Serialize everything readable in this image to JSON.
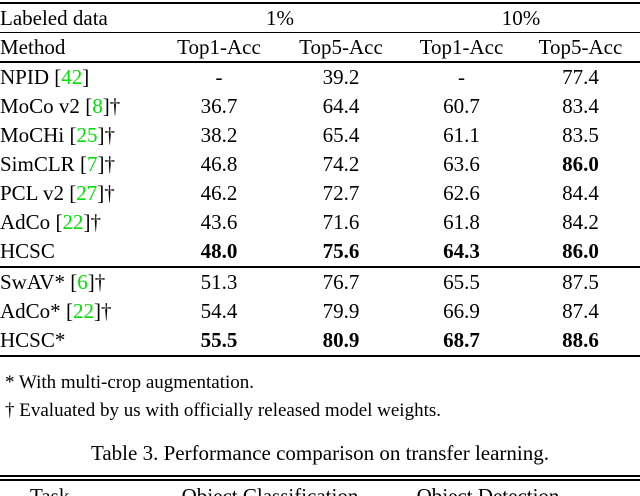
{
  "colors": {
    "citation_green": "#00e000"
  },
  "table3": {
    "header": {
      "labeled_data": "Labeled data",
      "pct1": "1%",
      "pct10": "10%",
      "method": "Method",
      "subcols": [
        "Top1-Acc",
        "Top5-Acc",
        "Top1-Acc",
        "Top5-Acc"
      ]
    },
    "groups": [
      {
        "rows": [
          {
            "name": "NPID",
            "cite": "42",
            "dagger": false,
            "values": [
              "-",
              "39.2",
              "-",
              "77.4"
            ],
            "bold": [
              false,
              false,
              false,
              false
            ]
          },
          {
            "name": "MoCo v2",
            "cite": "8",
            "dagger": true,
            "values": [
              "36.7",
              "64.4",
              "60.7",
              "83.4"
            ],
            "bold": [
              false,
              false,
              false,
              false
            ]
          },
          {
            "name": "MoCHi",
            "cite": "25",
            "dagger": true,
            "values": [
              "38.2",
              "65.4",
              "61.1",
              "83.5"
            ],
            "bold": [
              false,
              false,
              false,
              false
            ]
          },
          {
            "name": "SimCLR",
            "cite": "7",
            "dagger": true,
            "values": [
              "46.8",
              "74.2",
              "63.6",
              "86.0"
            ],
            "bold": [
              false,
              false,
              false,
              true
            ]
          },
          {
            "name": "PCL v2",
            "cite": "27",
            "dagger": true,
            "values": [
              "46.2",
              "72.7",
              "62.6",
              "84.4"
            ],
            "bold": [
              false,
              false,
              false,
              false
            ]
          },
          {
            "name": "AdCo",
            "cite": "22",
            "dagger": true,
            "values": [
              "43.6",
              "71.6",
              "61.8",
              "84.2"
            ],
            "bold": [
              false,
              false,
              false,
              false
            ]
          },
          {
            "name": "HCSC",
            "cite": null,
            "dagger": false,
            "values": [
              "48.0",
              "75.6",
              "64.3",
              "86.0"
            ],
            "bold": [
              true,
              true,
              true,
              true
            ]
          }
        ]
      },
      {
        "rows": [
          {
            "name": "SwAV*",
            "cite": "6",
            "dagger": true,
            "values": [
              "51.3",
              "76.7",
              "65.5",
              "87.5"
            ],
            "bold": [
              false,
              false,
              false,
              false
            ]
          },
          {
            "name": "AdCo*",
            "cite": "22",
            "dagger": true,
            "values": [
              "54.4",
              "79.9",
              "66.9",
              "87.4"
            ],
            "bold": [
              false,
              false,
              false,
              false
            ]
          },
          {
            "name": "HCSC*",
            "cite": null,
            "dagger": false,
            "values": [
              "55.5",
              "80.9",
              "68.7",
              "88.6"
            ],
            "bold": [
              true,
              true,
              true,
              true
            ]
          }
        ]
      }
    ]
  },
  "footnotes": [
    {
      "marker": "*",
      "text": "With multi-crop augmentation."
    },
    {
      "marker": "†",
      "text": "Evaluated by us with officially released model weights."
    }
  ],
  "caption": "Table 3. Performance comparison on transfer learning.",
  "next_table_header": {
    "col1": "Task",
    "col2": "Object Classification",
    "col3": "Object Detection"
  }
}
